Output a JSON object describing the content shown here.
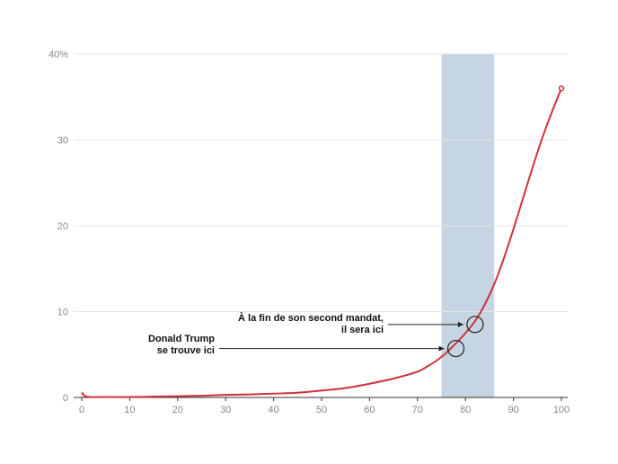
{
  "chart_data": {
    "type": "line",
    "title": "",
    "xlabel": "",
    "ylabel": "",
    "xlim": [
      0,
      100
    ],
    "ylim": [
      0,
      40
    ],
    "x_ticks": [
      "0",
      "10",
      "20",
      "30",
      "40",
      "50",
      "60",
      "70",
      "80",
      "90",
      "100"
    ],
    "y_ticks": [
      "0",
      "10",
      "20",
      "30",
      "40%"
    ],
    "grid": "horizontal",
    "highlight_band": {
      "x_start": 75,
      "x_end": 86,
      "color": "#c5d5e4"
    },
    "series": [
      {
        "color": "#d0323a",
        "x": [
          0,
          1,
          5,
          10,
          15,
          20,
          25,
          30,
          35,
          40,
          45,
          50,
          55,
          60,
          65,
          70,
          72,
          74,
          76,
          78,
          80,
          82,
          84,
          86,
          88,
          90,
          92,
          94,
          96,
          98,
          100
        ],
        "y": [
          0.6,
          0.1,
          0.05,
          0.05,
          0.1,
          0.15,
          0.2,
          0.3,
          0.35,
          0.45,
          0.55,
          0.8,
          1.1,
          1.6,
          2.2,
          3.0,
          3.6,
          4.3,
          5.2,
          6.3,
          7.5,
          8.9,
          10.8,
          13.2,
          16.2,
          19.6,
          23.2,
          26.8,
          30.2,
          33.2,
          36
        ]
      }
    ],
    "annotations": [
      {
        "lines": [
          "Donald Trump",
          "se trouve ici"
        ],
        "x": 78,
        "y": 5.7
      },
      {
        "lines": [
          "À la fin de son second mandat,",
          "il sera ici"
        ],
        "x": 82,
        "y": 8.5
      }
    ]
  }
}
